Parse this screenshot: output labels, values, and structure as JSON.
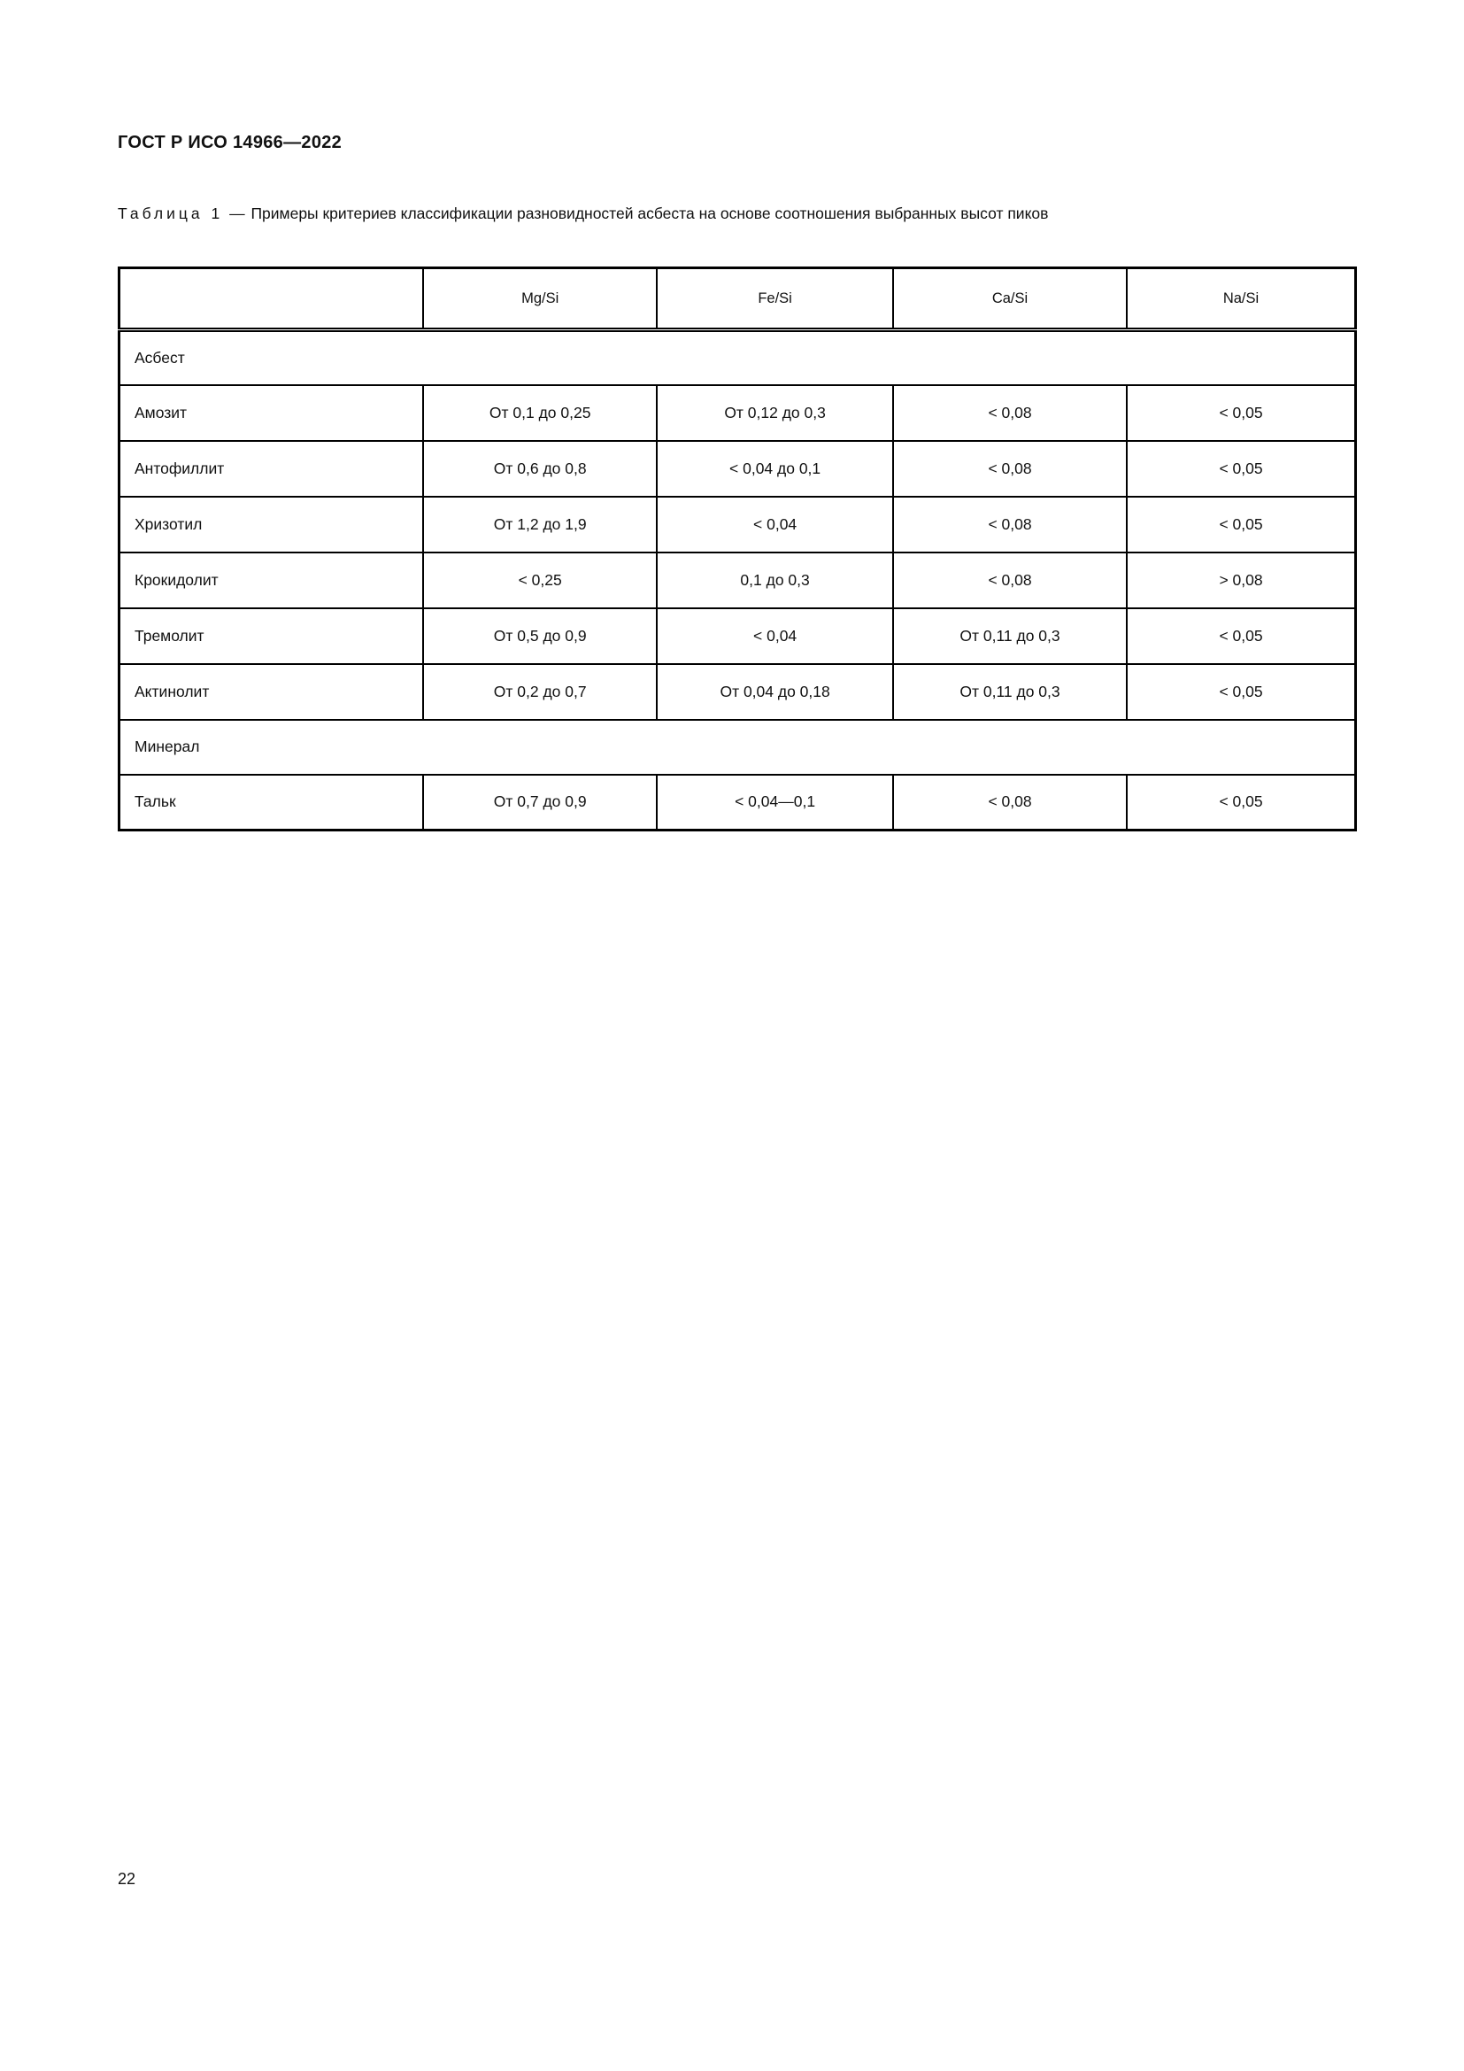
{
  "page": {
    "header": "ГОСТ Р ИСО 14966—2022",
    "page_number": "22"
  },
  "table": {
    "caption_label": "Таблица 1",
    "caption_separator": "—",
    "caption_text": "Примеры критериев классификации разновидностей асбеста на основе соотношения выбранных высот пиков",
    "columns": [
      "",
      "Mg/Si",
      "Fe/Si",
      "Ca/Si",
      "Na/Si"
    ],
    "sections": [
      {
        "title": "Асбест",
        "rows": [
          {
            "name": "Амозит",
            "values": [
              "От 0,1 до 0,25",
              "От 0,12 до 0,3",
              "< 0,08",
              "< 0,05"
            ]
          },
          {
            "name": "Антофиллит",
            "values": [
              "От 0,6 до 0,8",
              "< 0,04 до 0,1",
              "< 0,08",
              "< 0,05"
            ]
          },
          {
            "name": "Хризотил",
            "values": [
              "От 1,2 до 1,9",
              "< 0,04",
              "< 0,08",
              "< 0,05"
            ]
          },
          {
            "name": "Крокидолит",
            "values": [
              "< 0,25",
              "0,1 до 0,3",
              "< 0,08",
              "> 0,08"
            ]
          },
          {
            "name": "Тремолит",
            "values": [
              "От 0,5 до 0,9",
              "< 0,04",
              "От 0,11 до 0,3",
              "< 0,05"
            ]
          },
          {
            "name": "Актинолит",
            "values": [
              "От 0,2 до 0,7",
              "От 0,04 до 0,18",
              "От 0,11 до 0,3",
              "< 0,05"
            ]
          }
        ]
      },
      {
        "title": "Минерал",
        "rows": [
          {
            "name": "Тальк",
            "values": [
              "От 0,7 до 0,9",
              "< 0,04—0,1",
              "< 0,08",
              "< 0,05"
            ]
          }
        ]
      }
    ]
  }
}
